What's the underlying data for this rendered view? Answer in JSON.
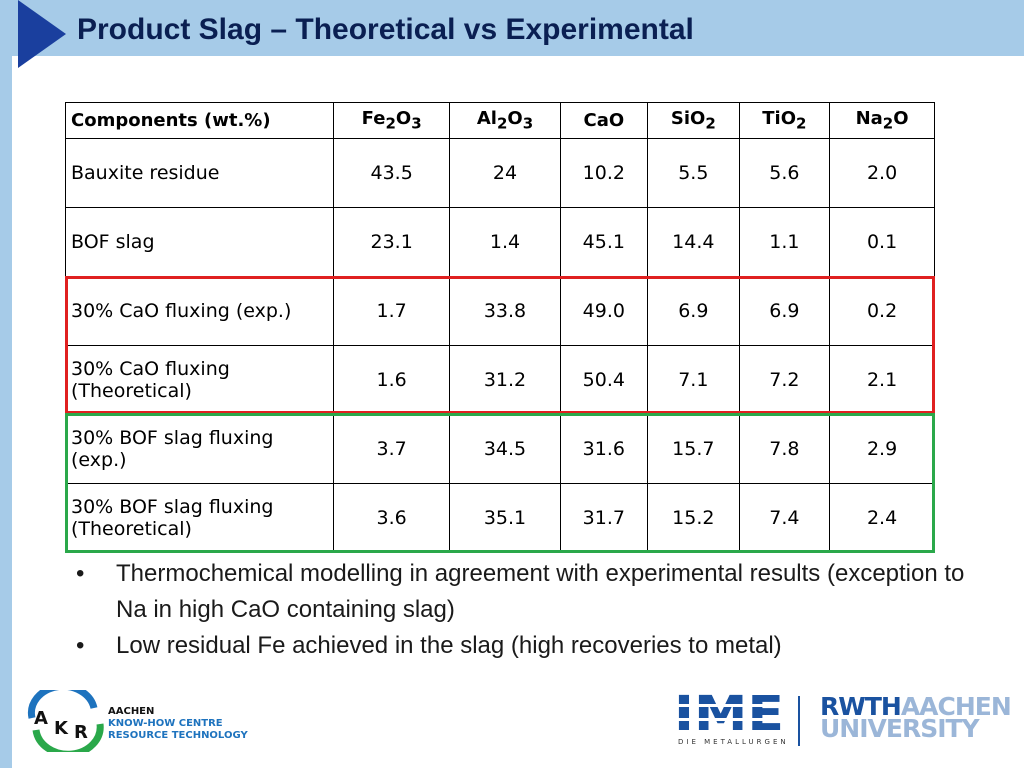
{
  "slide": {
    "title": "Product Slag – Theoretical vs Experimental"
  },
  "table": {
    "header": {
      "components": "Components (wt.%)",
      "columns": [
        {
          "base": "Fe",
          "sub1": "2",
          "mid": "O",
          "sub2": "3"
        },
        {
          "base": "Al",
          "sub1": "2",
          "mid": "O",
          "sub2": "3"
        },
        {
          "base": "CaO",
          "sub1": "",
          "mid": "",
          "sub2": ""
        },
        {
          "base": "SiO",
          "sub1": "2",
          "mid": "",
          "sub2": ""
        },
        {
          "base": "TiO",
          "sub1": "2",
          "mid": "",
          "sub2": ""
        },
        {
          "base": "Na",
          "sub1": "2",
          "mid": "O",
          "sub2": ""
        }
      ]
    },
    "rows": [
      {
        "label": "Bauxite residue",
        "values": [
          "43.5",
          "24",
          "10.2",
          "5.5",
          "5.6",
          "2.0"
        ]
      },
      {
        "label": "BOF slag",
        "values": [
          "23.1",
          "1.4",
          "45.1",
          "14.4",
          "1.1",
          "0.1"
        ]
      },
      {
        "label": "30% CaO fluxing (exp.)",
        "values": [
          "1.7",
          "33.8",
          "49.0",
          "6.9",
          "6.9",
          "0.2"
        ]
      },
      {
        "label": "30% CaO fluxing (Theoretical)",
        "values": [
          "1.6",
          "31.2",
          "50.4",
          "7.1",
          "7.2",
          "2.1"
        ]
      },
      {
        "label": "30% BOF slag fluxing (exp.)",
        "values": [
          "3.7",
          "34.5",
          "31.6",
          "15.7",
          "7.8",
          "2.9"
        ]
      },
      {
        "label": "30% BOF slag fluxing (Theoretical)",
        "values": [
          "3.6",
          "35.1",
          "31.7",
          "15.2",
          "7.4",
          "2.4"
        ]
      }
    ]
  },
  "bullets": {
    "marker": "•",
    "items": [
      "Thermochemical modelling in agreement with experimental results (exception to Na in high CaO containing slag)",
      "Low residual Fe achieved in the slag (high recoveries to metal)"
    ]
  },
  "footer": {
    "akr": {
      "logo_letters": {
        "a": "A",
        "k": "K",
        "r": "R"
      },
      "line1": "AACHEN",
      "line2": "KNOW-HOW CENTRE",
      "line3": "RESOURCE TECHNOLOGY"
    },
    "ime": {
      "logo": "IME",
      "subtitle": "DIE METALLURGEN"
    },
    "rwth": {
      "part1": "RWTH",
      "part2": "AACHEN",
      "part3": "UNIVERSITY"
    }
  },
  "colors": {
    "title_bar": "#a6cbe8",
    "title_text": "#0a1f52",
    "corner_triangle": "#1a3f9e",
    "cao_frame": "#e02020",
    "bof_frame": "#2aa84a",
    "akr_blue": "#1e73be",
    "rwth_blue": "#1a52a0"
  }
}
